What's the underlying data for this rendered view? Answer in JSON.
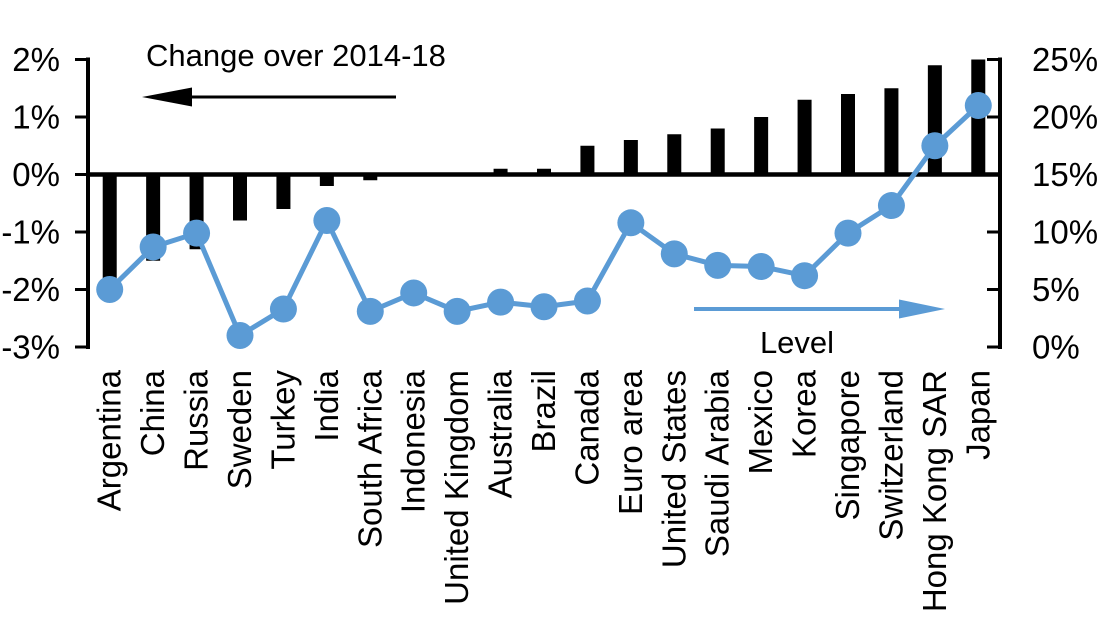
{
  "chart_data": {
    "type": "bar+line",
    "description": "Dual-axis combo chart: black bars (left axis, change over 2014-18) and blue line with circle markers (right axis, level) across 21 economies",
    "categories": [
      "Argentina",
      "China",
      "Russia",
      "Sweden",
      "Turkey",
      "India",
      "South Africa",
      "Indonesia",
      "United Kingdom",
      "Australia",
      "Brazil",
      "Canada",
      "Euro area",
      "United States",
      "Saudi Arabia",
      "Mexico",
      "Korea",
      "Singapore",
      "Switzerland",
      "Hong Kong SAR",
      "Japan"
    ],
    "series": [
      {
        "name": "Change over 2014-18",
        "type": "bar",
        "axis": "left",
        "color": "#000000",
        "unit": "percentage points",
        "values": [
          -1.8,
          -1.5,
          -1.3,
          -0.8,
          -0.6,
          -0.2,
          -0.1,
          0,
          0,
          0.1,
          0.1,
          0.5,
          0.6,
          0.7,
          0.8,
          1,
          1.3,
          1.4,
          1.5,
          1.9,
          2
        ]
      },
      {
        "name": "Level",
        "type": "line",
        "axis": "right",
        "color": "#5B9BD5",
        "unit": "percent",
        "values": [
          5,
          8.7,
          9.9,
          1,
          3.3,
          11,
          3.1,
          4.7,
          3.1,
          3.9,
          3.5,
          4,
          10.8,
          8.1,
          7.1,
          7,
          6.2,
          9.9,
          12.3,
          17.5,
          21
        ]
      }
    ],
    "left_axis": {
      "min": -3,
      "max": 2,
      "tick_labels": [
        "2%",
        "1%",
        "0%",
        "-1%",
        "-2%",
        "-3%"
      ],
      "tick_values": [
        2,
        1,
        0,
        -1,
        -2,
        -3
      ]
    },
    "right_axis": {
      "min": 0,
      "max": 25,
      "tick_labels": [
        "25%",
        "20%",
        "15%",
        "10%",
        "5%",
        "0%"
      ],
      "tick_values": [
        25,
        20,
        15,
        10,
        5,
        0
      ]
    },
    "annotations": [
      {
        "text": "Change over 2014-18",
        "arrow_direction": "left",
        "color": "#000000"
      },
      {
        "text": "Level",
        "arrow_direction": "right",
        "color": "#5B9BD5"
      }
    ],
    "background": "#ffffff",
    "grid": "off",
    "legend": "none"
  }
}
